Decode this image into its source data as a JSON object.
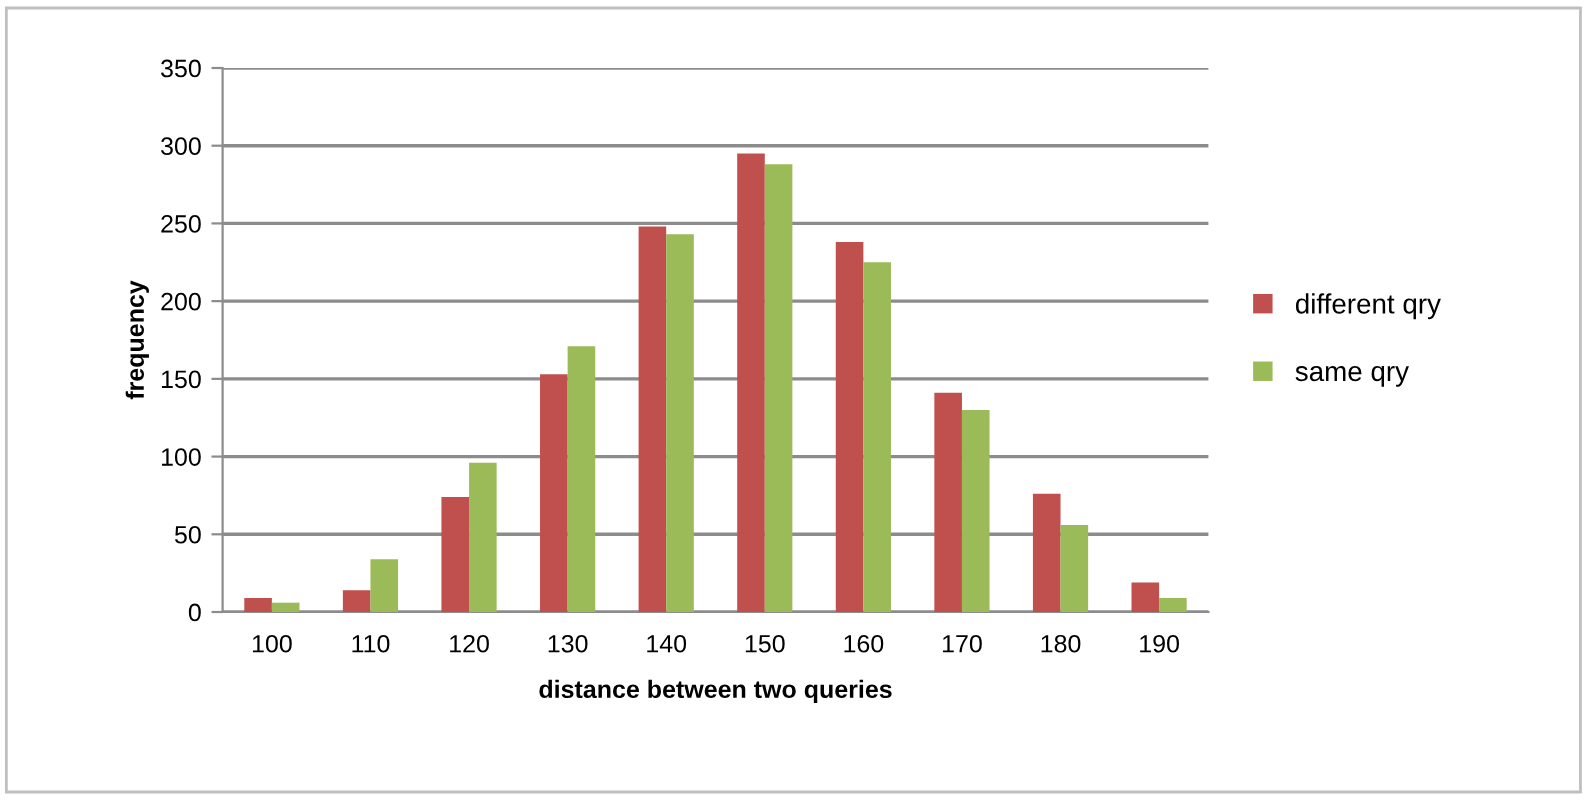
{
  "chart_data": {
    "type": "bar",
    "xlabel": "distance between two queries",
    "ylabel": "frequency",
    "categories": [
      "100",
      "110",
      "120",
      "130",
      "140",
      "150",
      "160",
      "170",
      "180",
      "190"
    ],
    "series": [
      {
        "name": "different qry",
        "color": "#c0504d",
        "values": [
          9,
          14,
          74,
          153,
          248,
          295,
          238,
          141,
          76,
          19
        ]
      },
      {
        "name": "same qry",
        "color": "#9bbb59",
        "values": [
          6,
          34,
          96,
          171,
          243,
          288,
          225,
          130,
          56,
          9
        ]
      }
    ],
    "ylim": [
      0,
      350
    ],
    "yticks": [
      0,
      50,
      100,
      150,
      200,
      250,
      300,
      350
    ],
    "grid": "y",
    "legend": "right"
  }
}
